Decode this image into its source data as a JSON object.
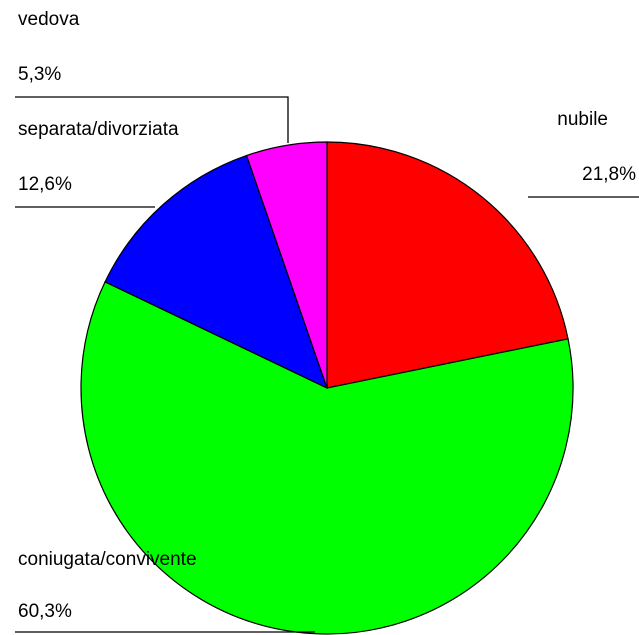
{
  "chart_data": {
    "type": "pie",
    "categories": [
      "nubile",
      "coniugata/convivente",
      "separata/divorziata",
      "vedova"
    ],
    "values": [
      21.8,
      60.3,
      12.6,
      5.3
    ],
    "value_labels": [
      "21,8%",
      "60,3%",
      "12,6%",
      "5,3%"
    ],
    "colors": [
      "#ff0000",
      "#00ff00",
      "#0000ff",
      "#ff00ff"
    ]
  }
}
